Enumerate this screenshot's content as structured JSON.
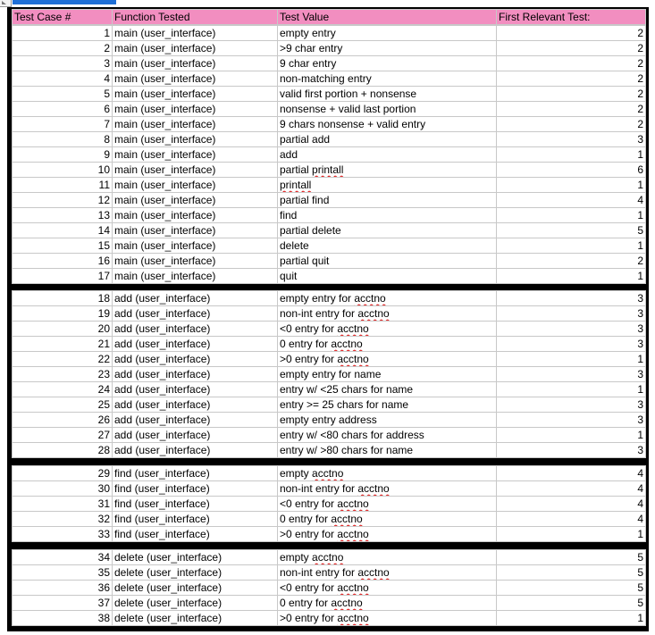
{
  "headers": [
    "Test Case #",
    "Function Tested",
    "Test Value",
    "First Relevant Test:"
  ],
  "groups": [
    [
      {
        "id": "1",
        "func": "main (user_interface)",
        "value": "empty entry",
        "first": "2"
      },
      {
        "id": "2",
        "func": "main (user_interface)",
        "value": ">9 char entry",
        "first": "2"
      },
      {
        "id": "3",
        "func": "main (user_interface)",
        "value": "9 char entry",
        "first": "2"
      },
      {
        "id": "4",
        "func": "main (user_interface)",
        "value": "non-matching entry",
        "first": "2"
      },
      {
        "id": "5",
        "func": "main (user_interface)",
        "value": "valid first portion + nonsense",
        "first": "2"
      },
      {
        "id": "6",
        "func": "main (user_interface)",
        "value": "nonsense + valid last portion",
        "first": "2"
      },
      {
        "id": "7",
        "func": "main (user_interface)",
        "value": "9 chars nonsense + valid entry",
        "first": "2"
      },
      {
        "id": "8",
        "func": "main (user_interface)",
        "value": "partial add",
        "first": "3"
      },
      {
        "id": "9",
        "func": "main (user_interface)",
        "value": "add",
        "first": "1"
      },
      {
        "id": "10",
        "func": "main (user_interface)",
        "value": "partial printall",
        "first": "6",
        "sq": "printall"
      },
      {
        "id": "11",
        "func": "main (user_interface)",
        "value": "printall",
        "first": "1",
        "sq": "printall"
      },
      {
        "id": "12",
        "func": "main (user_interface)",
        "value": "partial find",
        "first": "4"
      },
      {
        "id": "13",
        "func": "main (user_interface)",
        "value": "find",
        "first": "1"
      },
      {
        "id": "14",
        "func": "main (user_interface)",
        "value": "partial delete",
        "first": "5"
      },
      {
        "id": "15",
        "func": "main (user_interface)",
        "value": "delete",
        "first": "1"
      },
      {
        "id": "16",
        "func": "main (user_interface)",
        "value": "partial quit",
        "first": "2"
      },
      {
        "id": "17",
        "func": "main (user_interface)",
        "value": "quit",
        "first": "1"
      }
    ],
    [
      {
        "id": "18",
        "func": "add (user_interface)",
        "value": "empty entry for acctno",
        "first": "3",
        "sq": "acctno"
      },
      {
        "id": "19",
        "func": "add (user_interface)",
        "value": "non-int entry for acctno",
        "first": "3",
        "sq": "acctno"
      },
      {
        "id": "20",
        "func": "add (user_interface)",
        "value": "<0 entry for acctno",
        "first": "3",
        "sq": "acctno"
      },
      {
        "id": "21",
        "func": "add (user_interface)",
        "value": "0 entry for acctno",
        "first": "3",
        "sq": "acctno"
      },
      {
        "id": "22",
        "func": "add (user_interface)",
        "value": ">0 entry for acctno",
        "first": "1",
        "sq": "acctno"
      },
      {
        "id": "23",
        "func": "add (user_interface)",
        "value": "empty entry for name",
        "first": "3"
      },
      {
        "id": "24",
        "func": "add (user_interface)",
        "value": "entry w/ <25 chars for name",
        "first": "1"
      },
      {
        "id": "25",
        "func": "add (user_interface)",
        "value": "entry >= 25 chars for name",
        "first": "3"
      },
      {
        "id": "26",
        "func": "add (user_interface)",
        "value": "empty entry address",
        "first": "3"
      },
      {
        "id": "27",
        "func": "add (user_interface)",
        "value": "entry w/ <80 chars for address",
        "first": "1"
      },
      {
        "id": "28",
        "func": "add (user_interface)",
        "value": "entry w/ >80 chars for name",
        "first": "3"
      }
    ],
    [
      {
        "id": "29",
        "func": "find (user_interface)",
        "value": "empty acctno",
        "first": "4",
        "sq": "acctno"
      },
      {
        "id": "30",
        "func": "find (user_interface)",
        "value": "non-int entry for acctno",
        "first": "4",
        "sq": "acctno"
      },
      {
        "id": "31",
        "func": "find (user_interface)",
        "value": "<0 entry for acctno",
        "first": "4",
        "sq": "acctno"
      },
      {
        "id": "32",
        "func": "find (user_interface)",
        "value": "0 entry for acctno",
        "first": "4",
        "sq": "acctno"
      },
      {
        "id": "33",
        "func": "find (user_interface)",
        "value": ">0 entry for acctno",
        "first": "1",
        "sq": "acctno"
      }
    ],
    [
      {
        "id": "34",
        "func": "delete (user_interface)",
        "value": "empty acctno",
        "first": "5",
        "sq": "acctno"
      },
      {
        "id": "35",
        "func": "delete (user_interface)",
        "value": "non-int entry for acctno",
        "first": "5",
        "sq": "acctno"
      },
      {
        "id": "36",
        "func": "delete (user_interface)",
        "value": "<0 entry for acctno",
        "first": "5",
        "sq": "acctno"
      },
      {
        "id": "37",
        "func": "delete (user_interface)",
        "value": "0 entry for acctno",
        "first": "5",
        "sq": "acctno"
      },
      {
        "id": "38",
        "func": "delete (user_interface)",
        "value": ">0 entry for acctno",
        "first": "1",
        "sq": "acctno"
      }
    ]
  ]
}
